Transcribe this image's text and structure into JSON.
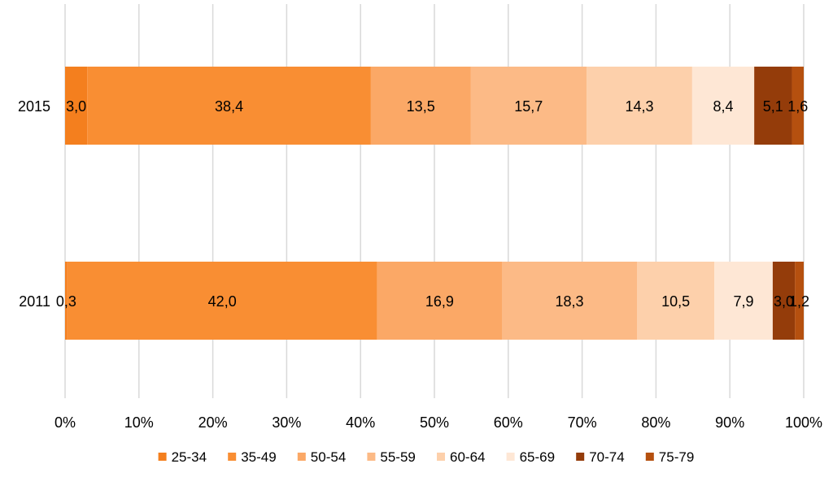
{
  "chart_data": {
    "type": "bar",
    "orientation": "horizontal",
    "stacked": "percent",
    "title": "",
    "xlabel": "",
    "ylabel": "",
    "categories": [
      "2015",
      "2011"
    ],
    "series": [
      {
        "name": "25-34",
        "color": "#F47F1E",
        "values": [
          3.0,
          0.3
        ],
        "labels": [
          "3,0",
          "0,3"
        ]
      },
      {
        "name": "35-49",
        "color": "#F98E33",
        "values": [
          38.4,
          42.0
        ],
        "labels": [
          "38,4",
          "42,0"
        ]
      },
      {
        "name": "50-54",
        "color": "#FBA866",
        "values": [
          13.5,
          16.9
        ],
        "labels": [
          "13,5",
          "16,9"
        ]
      },
      {
        "name": "55-59",
        "color": "#FCBA86",
        "values": [
          15.7,
          18.3
        ],
        "labels": [
          "15,7",
          "18,3"
        ]
      },
      {
        "name": "60-64",
        "color": "#FDD0AB",
        "values": [
          14.3,
          10.5
        ],
        "labels": [
          "14,3",
          "10,5"
        ]
      },
      {
        "name": "65-69",
        "color": "#FEE7D5",
        "values": [
          8.4,
          7.9
        ],
        "labels": [
          "8,4",
          "7,9"
        ]
      },
      {
        "name": "70-74",
        "color": "#943C0A",
        "values": [
          5.1,
          3.0
        ],
        "labels": [
          "5,1",
          "3,0"
        ]
      },
      {
        "name": "75-79",
        "color": "#B5500F",
        "values": [
          1.6,
          1.2
        ],
        "labels": [
          "1,6",
          "1,2"
        ]
      }
    ],
    "xlim": [
      0,
      100
    ],
    "x_ticks": [
      "0%",
      "10%",
      "20%",
      "30%",
      "40%",
      "50%",
      "60%",
      "70%",
      "80%",
      "90%",
      "100%"
    ],
    "grid": true,
    "legend_position": "bottom"
  }
}
